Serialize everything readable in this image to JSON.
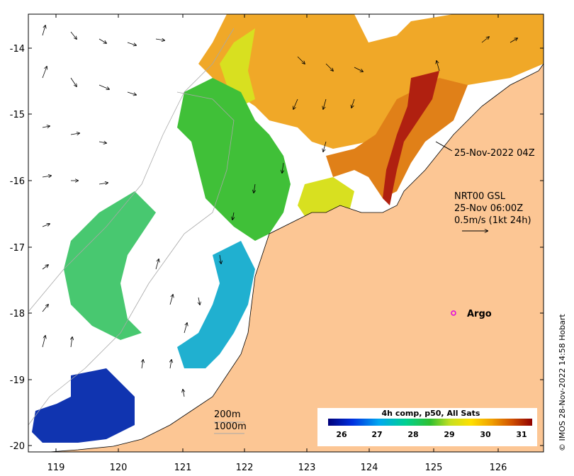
{
  "map": {
    "timestamp_label": "25-Nov-2022 04Z",
    "current_info": {
      "line1": "NRT00 GSL",
      "line2": "25-Nov 06:00Z",
      "line3": "0.5m/s (1kt 24h)"
    },
    "argo_label": "Argo",
    "isobaths": {
      "shallow": "200m",
      "deep": "1000m"
    },
    "credit": "© IMOS 28-Nov-2022 14:58 Hobart",
    "colorbar": {
      "title": "4h comp, p50, All Sats",
      "ticks": [
        "26",
        "27",
        "28",
        "29",
        "30",
        "31"
      ]
    },
    "x_ticks": [
      "119",
      "120",
      "121",
      "122",
      "123",
      "124",
      "125",
      "126"
    ],
    "y_ticks": [
      "-14",
      "-15",
      "-16",
      "-17",
      "-18",
      "-19",
      "-20"
    ],
    "colors": {
      "land": "#fcc694",
      "sst_warm": "#f0a020",
      "sst_mid": "#40c040",
      "sst_cool": "#18a0d8",
      "sst_cold": "#1030a8",
      "argo": "#e000e0"
    }
  }
}
